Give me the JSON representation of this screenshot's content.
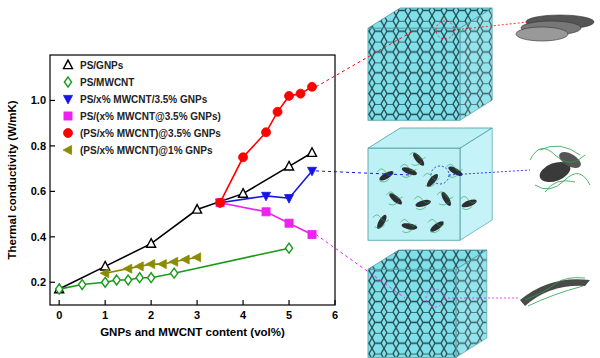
{
  "chart_data": {
    "type": "scatter",
    "xlabel": "GNPs and MWCNT content (vol%)",
    "ylabel": "Thermal conductivity (W/mK)",
    "xlim": [
      -0.2,
      6
    ],
    "ylim": [
      0.1,
      1.2
    ],
    "xticks": [
      0,
      1,
      2,
      3,
      4,
      5,
      6
    ],
    "yticks": [
      0.2,
      0.4,
      0.6,
      0.8,
      {
        "value": 1.0,
        "label": "1.0"
      }
    ],
    "grid": false,
    "legend": "upper left",
    "series": [
      {
        "name": "PS/GNPs",
        "color": "#000000",
        "marker": "triangle-up-open",
        "line_style": "solid",
        "x": [
          0,
          1,
          2,
          3,
          4,
          5,
          5.5
        ],
        "values": [
          0.17,
          0.27,
          0.37,
          0.52,
          0.59,
          0.71,
          0.77
        ]
      },
      {
        "name": "PS/MWCNT",
        "color": "#1a9a1a",
        "marker": "diamond-open",
        "line_style": "solid",
        "x": [
          0,
          0.5,
          1,
          1.25,
          1.5,
          1.75,
          2,
          2.5,
          5
        ],
        "values": [
          0.17,
          0.19,
          0.2,
          0.21,
          0.21,
          0.22,
          0.22,
          0.24,
          0.35
        ]
      },
      {
        "name": "PS/x% MWCNT/3.5% GNPs",
        "color": "#1515e6",
        "marker": "triangle-down",
        "line_style": "solid",
        "x": [
          3.5,
          4.5,
          5,
          5.5
        ],
        "values": [
          0.55,
          0.58,
          0.57,
          0.69
        ]
      },
      {
        "name": "PS/(x% MWCNT@3.5% GNPs)",
        "color": "#ee22ee",
        "marker": "square",
        "line_style": "solid",
        "x": [
          3.5,
          4.5,
          5,
          5.5
        ],
        "values": [
          0.55,
          0.51,
          0.46,
          0.41
        ]
      },
      {
        "name": "(PS/x% MWCNT)@3.5% GNPs",
        "color": "#ff0000",
        "marker": "circle",
        "line_style": "solid",
        "x": [
          3.5,
          4,
          4.5,
          4.75,
          5,
          5.25,
          5.5
        ],
        "values": [
          0.55,
          0.75,
          0.86,
          0.95,
          1.02,
          1.03,
          1.06
        ]
      },
      {
        "name": "(PS/x% MWCNT)@1% GNPs",
        "color": "#8b8b00",
        "marker": "triangle-left",
        "line_style": "solid",
        "x": [
          1,
          1.5,
          1.75,
          2,
          2.25,
          2.5,
          2.75,
          3
        ],
        "values": [
          0.24,
          0.26,
          0.27,
          0.28,
          0.28,
          0.29,
          0.3,
          0.31
        ]
      }
    ]
  }
}
